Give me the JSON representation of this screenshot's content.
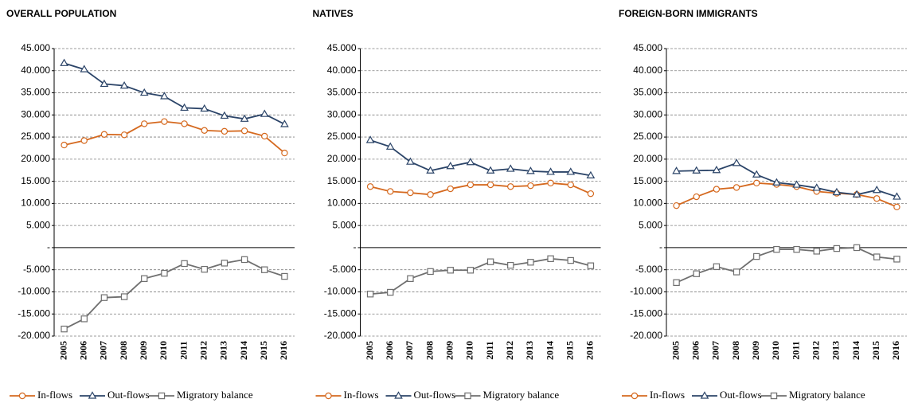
{
  "chart_data": [
    {
      "type": "line",
      "title": "OVERALL POPULATION",
      "categories": [
        "2005",
        "2006",
        "2007",
        "2008",
        "2009",
        "2010",
        "2011",
        "2012",
        "2013",
        "2014",
        "2015",
        "2016"
      ],
      "series": [
        {
          "name": "In-flows",
          "color": "#d5691f",
          "marker": "circle",
          "values": [
            23200,
            24200,
            25600,
            25500,
            28000,
            28500,
            28000,
            26500,
            26300,
            26400,
            25200,
            21400
          ]
        },
        {
          "name": "Out-flows",
          "color": "#2b4468",
          "marker": "triangle",
          "values": [
            41700,
            40300,
            37000,
            36600,
            35000,
            34200,
            31600,
            31400,
            29800,
            29100,
            30200,
            27900
          ]
        },
        {
          "name": "Migratory balance",
          "color": "#6f6f6f",
          "marker": "square",
          "values": [
            -18400,
            -16100,
            -11300,
            -11100,
            -7000,
            -5800,
            -3600,
            -4900,
            -3500,
            -2700,
            -5000,
            -6500
          ]
        }
      ],
      "ylim": [
        -20000,
        45000
      ],
      "yticks": [
        {
          "value": -20000,
          "label": "-20.000"
        },
        {
          "value": -15000,
          "label": "-15.000"
        },
        {
          "value": -10000,
          "label": "-10.000"
        },
        {
          "value": -5000,
          "label": "-5.000"
        },
        {
          "value": 0,
          "label": "-"
        },
        {
          "value": 5000,
          "label": "5.000"
        },
        {
          "value": 10000,
          "label": "10.000"
        },
        {
          "value": 15000,
          "label": "15.000"
        },
        {
          "value": 20000,
          "label": "20.000"
        },
        {
          "value": 25000,
          "label": "25.000"
        },
        {
          "value": 30000,
          "label": "30.000"
        },
        {
          "value": 35000,
          "label": "35.000"
        },
        {
          "value": 40000,
          "label": "40.000"
        },
        {
          "value": 45000,
          "label": "45.000"
        }
      ],
      "grid": true
    },
    {
      "type": "line",
      "title": "NATIVES",
      "categories": [
        "2005",
        "2006",
        "2007",
        "2008",
        "2009",
        "2010",
        "2011",
        "2012",
        "2013",
        "2014",
        "2015",
        "2016"
      ],
      "series": [
        {
          "name": "In-flows",
          "color": "#d5691f",
          "marker": "circle",
          "values": [
            13800,
            12700,
            12400,
            12000,
            13300,
            14200,
            14200,
            13800,
            14000,
            14600,
            14200,
            12200
          ]
        },
        {
          "name": "Out-flows",
          "color": "#2b4468",
          "marker": "triangle",
          "values": [
            24300,
            22800,
            19400,
            17400,
            18400,
            19300,
            17400,
            17800,
            17300,
            17100,
            17100,
            16300
          ]
        },
        {
          "name": "Migratory balance",
          "color": "#6f6f6f",
          "marker": "square",
          "values": [
            -10500,
            -10100,
            -7000,
            -5400,
            -5100,
            -5100,
            -3200,
            -4000,
            -3300,
            -2500,
            -2900,
            -4100
          ]
        }
      ],
      "ylim": [
        -20000,
        45000
      ],
      "yticks": [
        {
          "value": -20000,
          "label": "-20.000"
        },
        {
          "value": -15000,
          "label": "-15.000"
        },
        {
          "value": -10000,
          "label": "-10.000"
        },
        {
          "value": -5000,
          "label": "-5.000"
        },
        {
          "value": 0,
          "label": "-"
        },
        {
          "value": 5000,
          "label": "5.000"
        },
        {
          "value": 10000,
          "label": "10.000"
        },
        {
          "value": 15000,
          "label": "15.000"
        },
        {
          "value": 20000,
          "label": "20.000"
        },
        {
          "value": 25000,
          "label": "25.000"
        },
        {
          "value": 30000,
          "label": "30.000"
        },
        {
          "value": 35000,
          "label": "35.000"
        },
        {
          "value": 40000,
          "label": "40.000"
        },
        {
          "value": 45000,
          "label": "45.000"
        }
      ],
      "grid": true
    },
    {
      "type": "line",
      "title": "FOREIGN-BORN IMMIGRANTS",
      "categories": [
        "2005",
        "2006",
        "2007",
        "2008",
        "2009",
        "2010",
        "2011",
        "2012",
        "2013",
        "2014",
        "2015",
        "2016"
      ],
      "series": [
        {
          "name": "In-flows",
          "color": "#d5691f",
          "marker": "circle",
          "values": [
            9500,
            11500,
            13200,
            13600,
            14600,
            14300,
            13800,
            12700,
            12300,
            12000,
            11100,
            9200
          ]
        },
        {
          "name": "Out-flows",
          "color": "#2b4468",
          "marker": "triangle",
          "values": [
            17300,
            17400,
            17500,
            19100,
            16500,
            14700,
            14200,
            13500,
            12500,
            12000,
            13000,
            11500
          ]
        },
        {
          "name": "Migratory balance",
          "color": "#6f6f6f",
          "marker": "square",
          "values": [
            -7900,
            -5900,
            -4300,
            -5500,
            -2000,
            -400,
            -400,
            -800,
            -200,
            0,
            -2100,
            -2600
          ]
        }
      ],
      "ylim": [
        -20000,
        45000
      ],
      "yticks": [
        {
          "value": -20000,
          "label": "-20.000"
        },
        {
          "value": -15000,
          "label": "-15.000"
        },
        {
          "value": -10000,
          "label": "-10.000"
        },
        {
          "value": -5000,
          "label": "-5.000"
        },
        {
          "value": 0,
          "label": "-"
        },
        {
          "value": 5000,
          "label": "5.000"
        },
        {
          "value": 10000,
          "label": "10.000"
        },
        {
          "value": 15000,
          "label": "15.000"
        },
        {
          "value": 20000,
          "label": "20.000"
        },
        {
          "value": 25000,
          "label": "25.000"
        },
        {
          "value": 30000,
          "label": "30.000"
        },
        {
          "value": 35000,
          "label": "35.000"
        },
        {
          "value": 40000,
          "label": "40.000"
        },
        {
          "value": 45000,
          "label": "45.000"
        }
      ],
      "grid": true
    }
  ]
}
